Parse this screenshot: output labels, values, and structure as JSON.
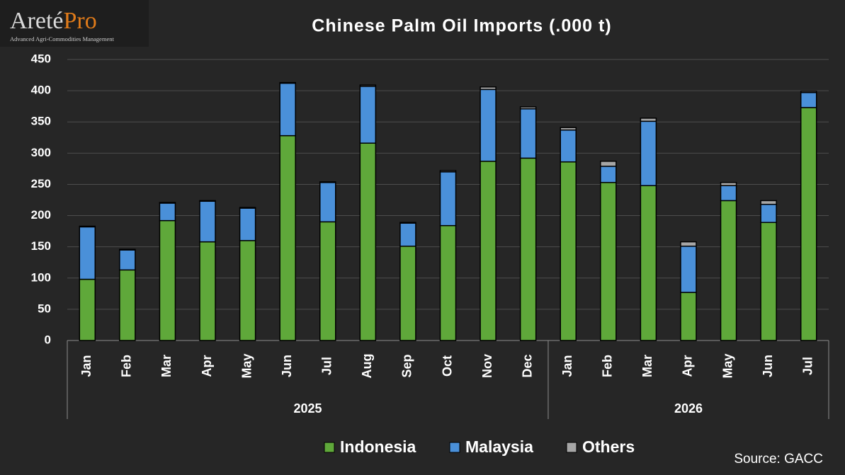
{
  "logo": {
    "name": "Areté",
    "name_accent": "Pro",
    "tagline": "Advanced Agri-Commodities Management"
  },
  "chart_data": {
    "type": "stacked_bar",
    "title": "Chinese Palm Oil Imports (.000 t)",
    "groups": [
      {
        "name": "2025",
        "categories": [
          "Jan",
          "Feb",
          "Mar",
          "Apr",
          "May",
          "Jun",
          "Jul",
          "Aug",
          "Sep",
          "Oct",
          "Nov",
          "Dec"
        ]
      },
      {
        "name": "2026",
        "categories": [
          "Jan",
          "Feb",
          "Mar",
          "Apr",
          "May",
          "Jun",
          "Jul"
        ]
      }
    ],
    "series": [
      {
        "name": "Indonesia",
        "color": "#5fa83a",
        "values": [
          98,
          113,
          192,
          158,
          160,
          328,
          190,
          316,
          151,
          184,
          287,
          292,
          286,
          253,
          248,
          77,
          224,
          189,
          373
        ]
      },
      {
        "name": "Malaysia",
        "color": "#4a90d9",
        "values": [
          84,
          32,
          28,
          65,
          52,
          84,
          63,
          91,
          37,
          86,
          115,
          79,
          51,
          26,
          103,
          74,
          24,
          29,
          24
        ]
      },
      {
        "name": "Others",
        "color": "#a6a6a6",
        "values": [
          1,
          1,
          1,
          1,
          1,
          1,
          1,
          2,
          1,
          2,
          4,
          3,
          4,
          8,
          5,
          7,
          5,
          6,
          2
        ]
      }
    ],
    "ylim": [
      0,
      450
    ],
    "yticks": [
      0,
      50,
      100,
      150,
      200,
      250,
      300,
      350,
      400,
      450
    ],
    "grid": true,
    "source": "Source:  GACC"
  }
}
